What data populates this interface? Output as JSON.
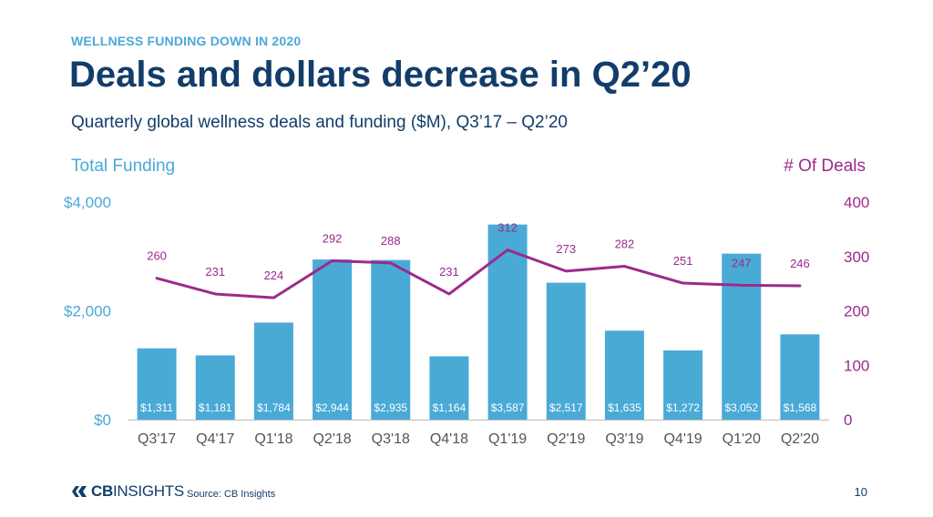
{
  "header": {
    "kicker": "WELLNESS FUNDING DOWN IN 2020",
    "title": "Deals and dollars decrease in Q2’20",
    "subtitle": "Quarterly global wellness deals and funding ($M), Q3’17 – Q2’20"
  },
  "footer": {
    "logo_bold": "CB",
    "logo_rest": "INSIGHTS",
    "source": "Source: CB Insights",
    "page": "10"
  },
  "colors": {
    "bar": "#4aaad6",
    "line": "#9c2a8c",
    "left_axis": "#4aa8d8",
    "right_axis": "#9c2a8c",
    "title": "#123d6a",
    "tick": "#555555"
  },
  "chart_data": {
    "type": "bar+line",
    "categories": [
      "Q3'17",
      "Q4'17",
      "Q1'18",
      "Q2'18",
      "Q3'18",
      "Q4'18",
      "Q1'19",
      "Q2'19",
      "Q3'19",
      "Q4'19",
      "Q1'20",
      "Q2'20"
    ],
    "series": [
      {
        "name": "Total Funding",
        "type": "bar",
        "axis": "left",
        "values": [
          1311,
          1181,
          1784,
          2944,
          2935,
          1164,
          3587,
          2517,
          1635,
          1272,
          3052,
          1568
        ],
        "labels": [
          "$1,311",
          "$1,181",
          "$1,784",
          "$2,944",
          "$2,935",
          "$1,164",
          "$3,587",
          "$2,517",
          "$1,635",
          "$1,272",
          "$3,052",
          "$1,568"
        ]
      },
      {
        "name": "# Of Deals",
        "type": "line",
        "axis": "right",
        "values": [
          260,
          231,
          224,
          292,
          288,
          231,
          312,
          273,
          282,
          251,
          247,
          246
        ],
        "labels": [
          "260",
          "231",
          "224",
          "292",
          "288",
          "231",
          "312",
          "273",
          "282",
          "251",
          "247",
          "246"
        ]
      }
    ],
    "left_axis": {
      "title": "Total Funding",
      "ylim": [
        0,
        4000
      ],
      "ticks": [
        0,
        2000,
        4000
      ],
      "tick_labels": [
        "$0",
        "$2,000",
        "$4,000"
      ]
    },
    "right_axis": {
      "title": "# Of Deals",
      "ylim": [
        0,
        400
      ],
      "ticks": [
        0,
        100,
        200,
        300,
        400
      ],
      "tick_labels": [
        "0",
        "100",
        "200",
        "300",
        "400"
      ]
    },
    "grid": false
  }
}
